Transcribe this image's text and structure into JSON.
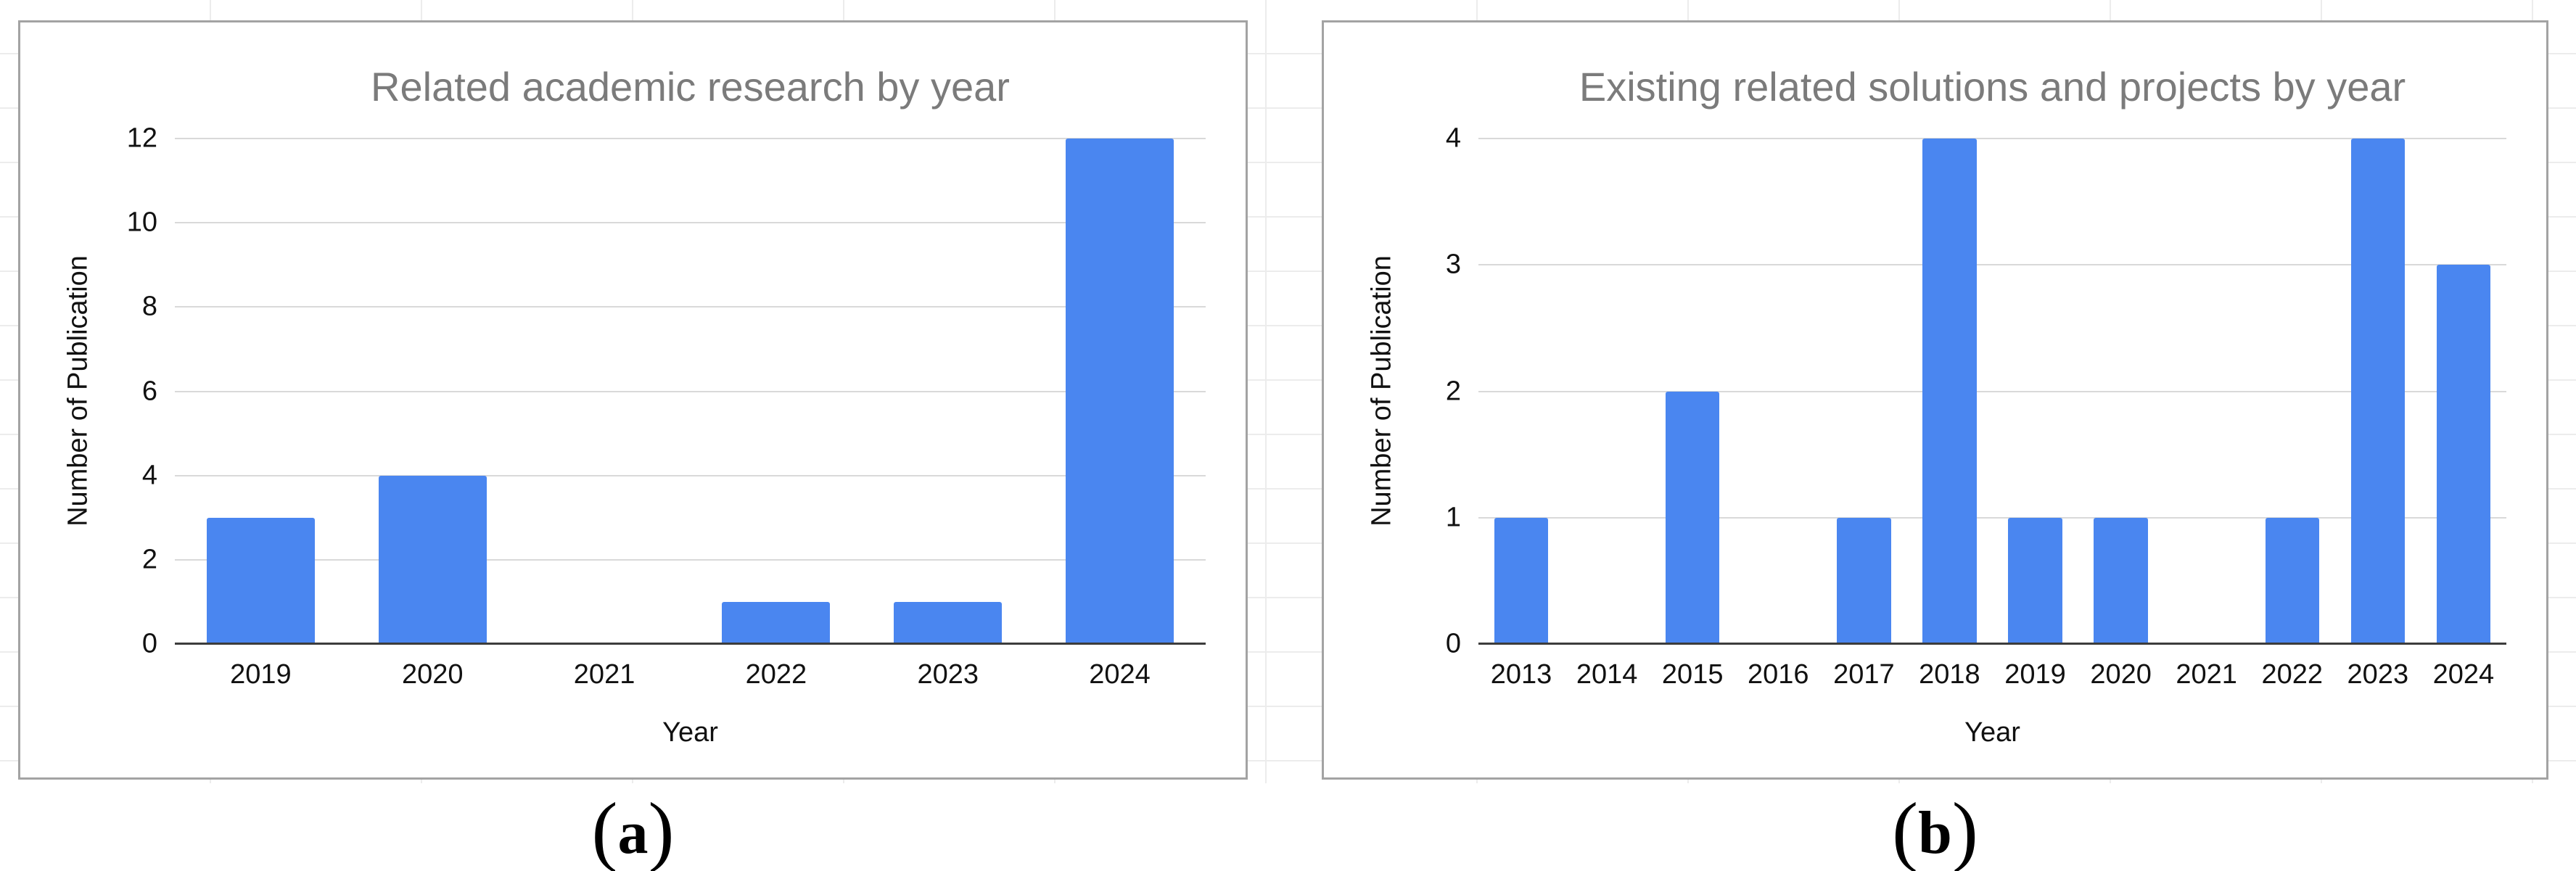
{
  "style": {
    "bar_color": "#4a86f0",
    "title_color": "#7b7b7b",
    "gridline_color": "#d9d9d9",
    "axis_line_color": "#3c3c3c",
    "panel_border_color": "#a3a3a3",
    "text_color": "#111111",
    "sheet_line_color": "#ececec",
    "background": "#ffffff"
  },
  "chart_data": [
    {
      "type": "bar",
      "panel": "a",
      "title": "Related academic research by year",
      "xlabel": "Year",
      "ylabel": "Number of Publication",
      "categories": [
        "2019",
        "2020",
        "2021",
        "2022",
        "2023",
        "2024"
      ],
      "values": [
        3,
        4,
        0,
        1,
        1,
        12
      ],
      "yticks": [
        0,
        2,
        4,
        6,
        8,
        10,
        12
      ],
      "ylim": [
        0,
        12
      ],
      "grid": true,
      "legend": "none",
      "caption_prefix": "(",
      "caption_letter": "a",
      "caption_suffix": ")"
    },
    {
      "type": "bar",
      "panel": "b",
      "title": "Existing related solutions and projects by year",
      "xlabel": "Year",
      "ylabel": "Number of Publication",
      "categories": [
        "2013",
        "2014",
        "2015",
        "2016",
        "2017",
        "2018",
        "2019",
        "2020",
        "2021",
        "2022",
        "2023",
        "2024"
      ],
      "values": [
        1,
        0,
        2,
        0,
        1,
        4,
        1,
        1,
        0,
        1,
        4,
        3
      ],
      "yticks": [
        0,
        1,
        2,
        3,
        4
      ],
      "ylim": [
        0,
        4
      ],
      "grid": true,
      "legend": "none",
      "caption_prefix": "(",
      "caption_letter": "b",
      "caption_suffix": ")"
    }
  ]
}
